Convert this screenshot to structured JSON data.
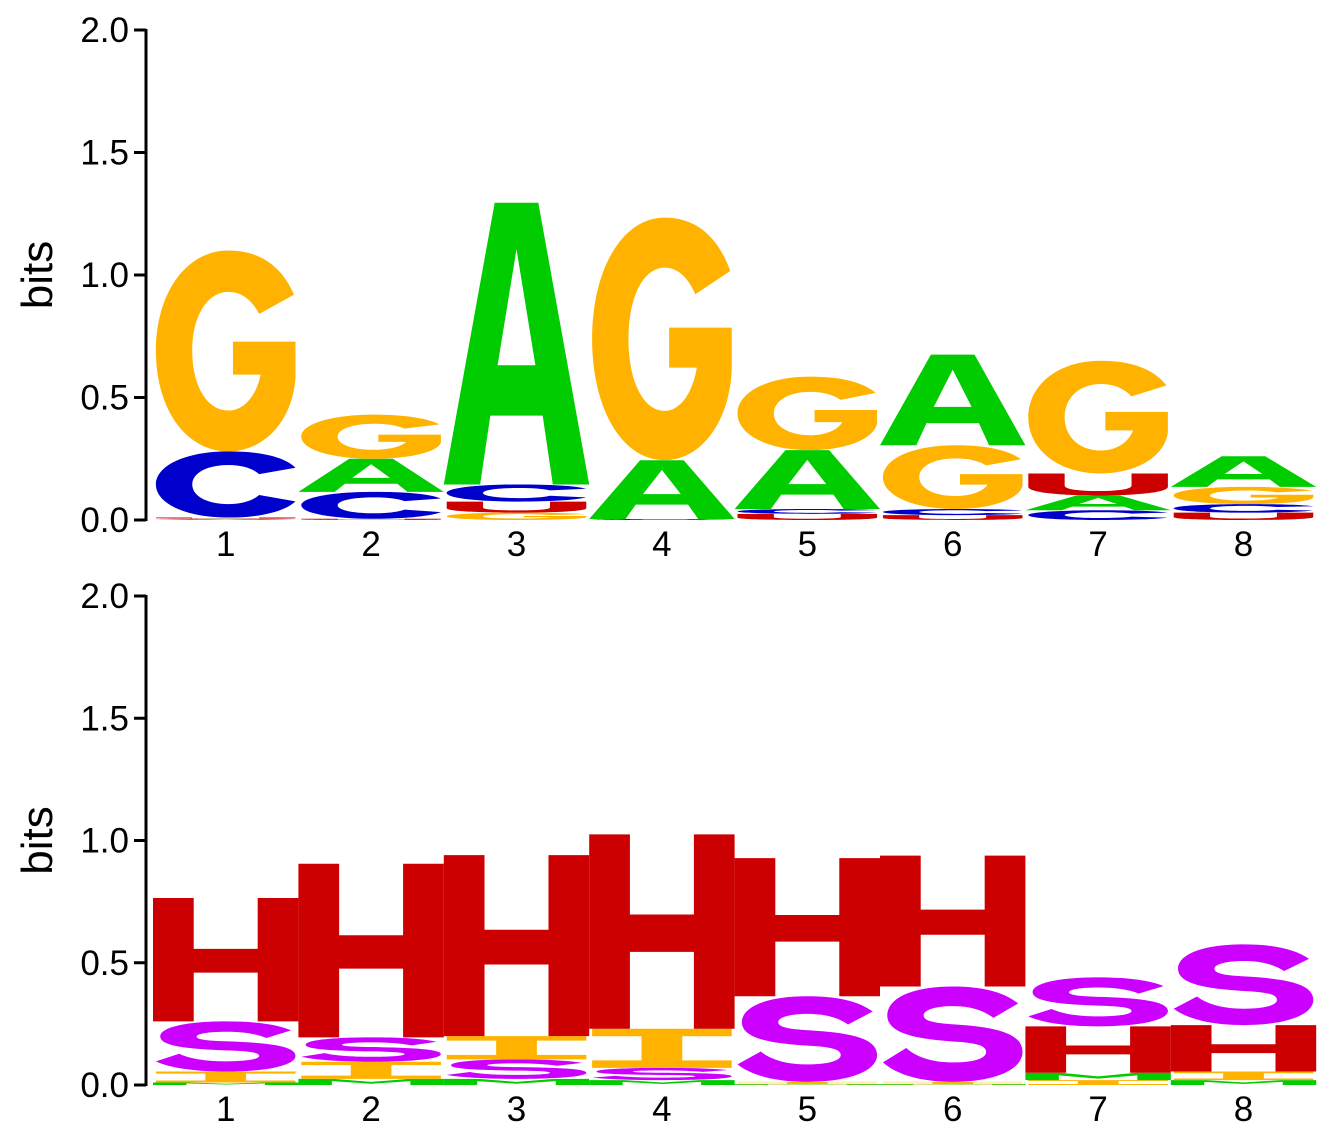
{
  "chart_data": [
    {
      "type": "sequence-logo",
      "alphabet": [
        "A",
        "C",
        "G",
        "U"
      ],
      "ylabel": "bits",
      "ylim": [
        0,
        2
      ],
      "y_ticks": [
        "0.0",
        "0.5",
        "1.0",
        "1.5",
        "2.0"
      ],
      "x_ticks": [
        "1",
        "2",
        "3",
        "4",
        "5",
        "6",
        "7",
        "8"
      ],
      "colors": {
        "A": "#00cc00",
        "C": "#0000cc",
        "G": "#ffb300",
        "U": "#cc0000"
      },
      "positions": [
        {
          "x": "1",
          "stack": [
            {
              "letter": "A",
              "bits": 0.005
            },
            {
              "letter": "U",
              "bits": 0.005
            },
            {
              "letter": "C",
              "bits": 0.27
            },
            {
              "letter": "G",
              "bits": 0.82
            }
          ]
        },
        {
          "x": "2",
          "stack": [
            {
              "letter": "U",
              "bits": 0.005
            },
            {
              "letter": "C",
              "bits": 0.11
            },
            {
              "letter": "A",
              "bits": 0.135
            },
            {
              "letter": "G",
              "bits": 0.18
            }
          ]
        },
        {
          "x": "3",
          "stack": [
            {
              "letter": "G",
              "bits": 0.03
            },
            {
              "letter": "U",
              "bits": 0.045
            },
            {
              "letter": "C",
              "bits": 0.07
            },
            {
              "letter": "A",
              "bits": 1.15
            }
          ]
        },
        {
          "x": "4",
          "stack": [
            {
              "letter": "C",
              "bits": 0.004
            },
            {
              "letter": "A",
              "bits": 0.24
            },
            {
              "letter": "G",
              "bits": 0.99
            }
          ]
        },
        {
          "x": "5",
          "stack": [
            {
              "letter": "U",
              "bits": 0.025
            },
            {
              "letter": "C",
              "bits": 0.02
            },
            {
              "letter": "A",
              "bits": 0.24
            },
            {
              "letter": "G",
              "bits": 0.3
            }
          ]
        },
        {
          "x": "6",
          "stack": [
            {
              "letter": "U",
              "bits": 0.02
            },
            {
              "letter": "C",
              "bits": 0.025
            },
            {
              "letter": "G",
              "bits": 0.26
            },
            {
              "letter": "A",
              "bits": 0.37
            }
          ]
        },
        {
          "x": "7",
          "stack": [
            {
              "letter": "C",
              "bits": 0.04
            },
            {
              "letter": "A",
              "bits": 0.06
            },
            {
              "letter": "U",
              "bits": 0.09
            },
            {
              "letter": "G",
              "bits": 0.46
            }
          ]
        },
        {
          "x": "8",
          "stack": [
            {
              "letter": "U",
              "bits": 0.03
            },
            {
              "letter": "C",
              "bits": 0.035
            },
            {
              "letter": "G",
              "bits": 0.07
            },
            {
              "letter": "A",
              "bits": 0.125
            }
          ]
        }
      ]
    },
    {
      "type": "sequence-logo",
      "alphabet": [
        "H",
        "I",
        "M",
        "S"
      ],
      "ylabel": "bits",
      "ylim": [
        0,
        2
      ],
      "y_ticks": [
        "0.0",
        "0.5",
        "1.0",
        "1.5",
        "2.0"
      ],
      "x_ticks": [
        "1",
        "2",
        "3",
        "4",
        "5",
        "6",
        "7",
        "8"
      ],
      "colors": {
        "H": "#cc0000",
        "I": "#ffb300",
        "M": "#00cc00",
        "S": "#cc00ff"
      },
      "positions": [
        {
          "x": "1",
          "stack": [
            {
              "letter": "M",
              "bits": 0.01
            },
            {
              "letter": "I",
              "bits": 0.045
            },
            {
              "letter": "S",
              "bits": 0.205
            },
            {
              "letter": "H",
              "bits": 0.505
            }
          ]
        },
        {
          "x": "2",
          "stack": [
            {
              "letter": "M",
              "bits": 0.025
            },
            {
              "letter": "I",
              "bits": 0.07
            },
            {
              "letter": "S",
              "bits": 0.1
            },
            {
              "letter": "H",
              "bits": 0.71
            }
          ]
        },
        {
          "x": "3",
          "stack": [
            {
              "letter": "M",
              "bits": 0.025
            },
            {
              "letter": "S",
              "bits": 0.08
            },
            {
              "letter": "I",
              "bits": 0.095
            },
            {
              "letter": "H",
              "bits": 0.74
            }
          ]
        },
        {
          "x": "4",
          "stack": [
            {
              "letter": "M",
              "bits": 0.02
            },
            {
              "letter": "S",
              "bits": 0.05
            },
            {
              "letter": "I",
              "bits": 0.16
            },
            {
              "letter": "H",
              "bits": 0.795
            }
          ]
        },
        {
          "x": "5",
          "stack": [
            {
              "letter": "M",
              "bits": 0.003
            },
            {
              "letter": "I",
              "bits": 0.01
            },
            {
              "letter": "S",
              "bits": 0.35
            },
            {
              "letter": "H",
              "bits": 0.565
            }
          ]
        },
        {
          "x": "6",
          "stack": [
            {
              "letter": "M",
              "bits": 0.003
            },
            {
              "letter": "I",
              "bits": 0.01
            },
            {
              "letter": "S",
              "bits": 0.39
            },
            {
              "letter": "H",
              "bits": 0.535
            }
          ]
        },
        {
          "x": "7",
          "stack": [
            {
              "letter": "I",
              "bits": 0.02
            },
            {
              "letter": "M",
              "bits": 0.03
            },
            {
              "letter": "H",
              "bits": 0.19
            },
            {
              "letter": "S",
              "bits": 0.2
            }
          ]
        },
        {
          "x": "8",
          "stack": [
            {
              "letter": "M",
              "bits": 0.02
            },
            {
              "letter": "I",
              "bits": 0.035
            },
            {
              "letter": "H",
              "bits": 0.19
            },
            {
              "letter": "S",
              "bits": 0.33
            }
          ]
        }
      ]
    }
  ]
}
